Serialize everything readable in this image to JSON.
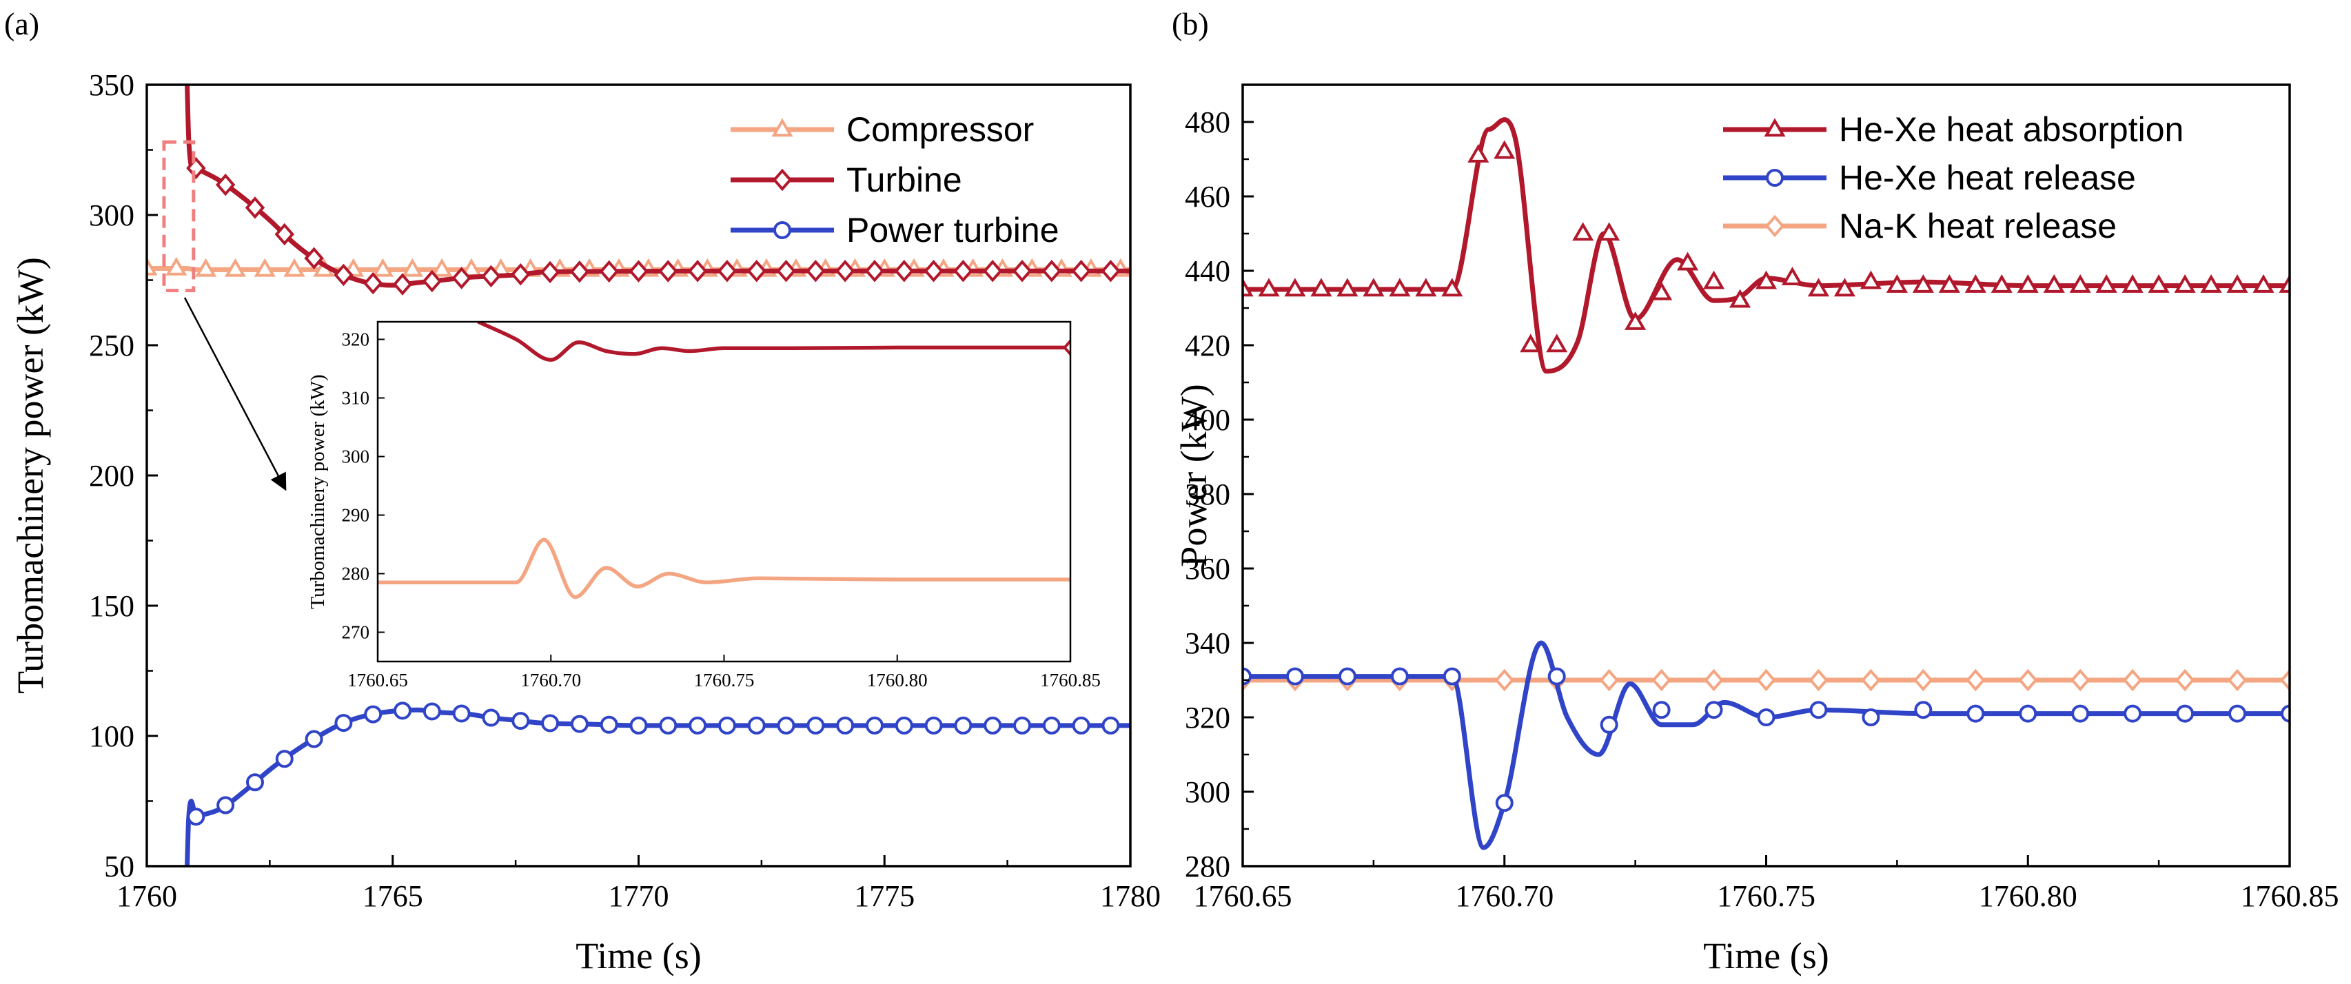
{
  "chart_data": [
    {
      "panel_label": "(a)",
      "type": "line",
      "xlabel": "Time (s)",
      "ylabel": "Turbomachinery power (kW)",
      "xlim": [
        1760,
        1780
      ],
      "ylim": [
        50,
        350
      ],
      "xticks": [
        "1760",
        "1765",
        "1770",
        "1775",
        "1780"
      ],
      "yticks": [
        "50",
        "100",
        "150",
        "200",
        "250",
        "300",
        "350"
      ],
      "legend_position": "top-right",
      "series": [
        {
          "name": "Compressor",
          "color": "#F4A582",
          "marker": "triangle",
          "x": [
            1760,
            1760.5,
            1760.8,
            1761,
            1761.5,
            1762,
            1763,
            1764,
            1765,
            1766,
            1767,
            1768,
            1769,
            1770,
            1772,
            1774,
            1776,
            1778,
            1780
          ],
          "y": [
            279.5,
            279.5,
            279.5,
            279.0,
            279.0,
            279.0,
            279.0,
            279.0,
            279.0,
            279.0,
            279.0,
            279.0,
            279.0,
            279.0,
            279.0,
            279.0,
            279.0,
            279.0,
            279.0
          ]
        },
        {
          "name": "Turbine",
          "color": "#B2182B",
          "marker": "diamond",
          "x": [
            1760.82,
            1760.85,
            1760.9,
            1761,
            1761.5,
            1762,
            1762.5,
            1763,
            1763.5,
            1764,
            1764.5,
            1765,
            1765.5,
            1766,
            1766.5,
            1767,
            1767.5,
            1768,
            1769,
            1770,
            1772,
            1774,
            1776,
            1778,
            1780
          ],
          "y": [
            350,
            330,
            319,
            318.0,
            313.0,
            306.0,
            298.0,
            289.0,
            282.0,
            277.0,
            274.0,
            273.0,
            274.0,
            275.0,
            276.0,
            276.5,
            277.0,
            278.0,
            278.3,
            278.4,
            278.5,
            278.5,
            278.5,
            278.5,
            278.5
          ]
        },
        {
          "name": "Power turbine",
          "color": "#3044C8",
          "marker": "circle",
          "x": [
            1760.82,
            1760.85,
            1761,
            1761.5,
            1762,
            1762.5,
            1763,
            1763.5,
            1764,
            1764.5,
            1765,
            1765.5,
            1766,
            1766.5,
            1767,
            1767.5,
            1768,
            1769,
            1770,
            1772,
            1774,
            1776,
            1778,
            1780
          ],
          "y": [
            50,
            68,
            69.0,
            72.0,
            79.0,
            87.0,
            94.0,
            100.0,
            105.0,
            108.0,
            109.5,
            110.0,
            109.0,
            108.5,
            107.0,
            106.0,
            105.0,
            104.5,
            104.0,
            104.0,
            104.0,
            104.0,
            104.0,
            104.0
          ]
        }
      ],
      "inset": {
        "type": "line",
        "ylabel": "Turbomachinery power (kW)",
        "xlim": [
          1760.65,
          1760.85
        ],
        "ylim": [
          265,
          323
        ],
        "xticks": [
          "1760.65",
          "1760.70",
          "1760.75",
          "1760.80",
          "1760.85"
        ],
        "yticks": [
          "270",
          "280",
          "290",
          "300",
          "310",
          "320"
        ],
        "series": [
          {
            "name": "Turbine",
            "color": "#B2182B",
            "x": [
              1760.679,
              1760.69,
              1760.7,
              1760.708,
              1760.716,
              1760.724,
              1760.732,
              1760.74,
              1760.75,
              1760.77,
              1760.8,
              1760.85
            ],
            "y": [
              323,
              320,
              316.5,
              319.5,
              318.0,
              317.5,
              318.5,
              318.0,
              318.5,
              318.5,
              318.6,
              318.6
            ],
            "end_marker": "diamond"
          },
          {
            "name": "Compressor",
            "color": "#F4A582",
            "x": [
              1760.65,
              1760.69,
              1760.698,
              1760.707,
              1760.716,
              1760.725,
              1760.734,
              1760.745,
              1760.76,
              1760.8,
              1760.85
            ],
            "y": [
              278.5,
              278.5,
              285.8,
              276.0,
              281.0,
              277.8,
              280.0,
              278.5,
              279.2,
              279.0,
              279.0
            ]
          }
        ]
      },
      "zoom_box_note": "dashed box near t=1760.8 s with arrow to inset"
    },
    {
      "panel_label": "(b)",
      "type": "line",
      "xlabel": "Time (s)",
      "ylabel": "Power (kW)",
      "xlim": [
        1760.65,
        1760.85
      ],
      "ylim": [
        280,
        490
      ],
      "xticks": [
        "1760.65",
        "1760.70",
        "1760.75",
        "1760.80",
        "1760.85"
      ],
      "yticks": [
        "280",
        "300",
        "320",
        "340",
        "360",
        "380",
        "400",
        "420",
        "440",
        "460",
        "480"
      ],
      "legend_position": "top-right",
      "series": [
        {
          "name": "He-Xe heat absorption",
          "color": "#B2182B",
          "marker": "triangle",
          "x": [
            1760.65,
            1760.69,
            1760.697,
            1760.702,
            1760.708,
            1760.714,
            1760.719,
            1760.725,
            1760.733,
            1760.74,
            1760.745,
            1760.75,
            1760.76,
            1760.78,
            1760.8,
            1760.85
          ],
          "y": [
            435,
            435,
            478,
            476,
            413,
            421,
            450,
            427,
            443,
            432,
            433,
            438,
            436,
            437,
            436,
            436
          ],
          "marker_x": [
            1760.65,
            1760.655,
            1760.66,
            1760.665,
            1760.67,
            1760.675,
            1760.68,
            1760.685,
            1760.69,
            1760.695,
            1760.7,
            1760.705,
            1760.71,
            1760.715,
            1760.72,
            1760.725,
            1760.73,
            1760.735,
            1760.74,
            1760.745,
            1760.75,
            1760.755,
            1760.76,
            1760.765,
            1760.77,
            1760.775,
            1760.78,
            1760.785,
            1760.79,
            1760.795,
            1760.8,
            1760.805,
            1760.81,
            1760.815,
            1760.82,
            1760.825,
            1760.83,
            1760.835,
            1760.84,
            1760.845,
            1760.85
          ],
          "marker_y": [
            435,
            435,
            435,
            435,
            435,
            435,
            435,
            435,
            435,
            471,
            472,
            420,
            420,
            450,
            450,
            426,
            434,
            442,
            437,
            432,
            437,
            438,
            435,
            435,
            437,
            436,
            436,
            436,
            436,
            436,
            436,
            436,
            436,
            436,
            436,
            436,
            436,
            436,
            436,
            436,
            436
          ]
        },
        {
          "name": "He-Xe heat release",
          "color": "#3044C8",
          "marker": "circle",
          "x": [
            1760.65,
            1760.69,
            1760.696,
            1760.7,
            1760.707,
            1760.712,
            1760.718,
            1760.724,
            1760.73,
            1760.736,
            1760.742,
            1760.75,
            1760.76,
            1760.78,
            1760.8,
            1760.85
          ],
          "y": [
            331,
            331,
            285,
            297,
            340,
            320,
            310,
            329,
            318,
            318,
            324,
            320,
            322,
            321,
            321,
            321
          ],
          "marker_x": [
            1760.65,
            1760.66,
            1760.67,
            1760.68,
            1760.69,
            1760.7,
            1760.71,
            1760.72,
            1760.73,
            1760.74,
            1760.75,
            1760.76,
            1760.77,
            1760.78,
            1760.79,
            1760.8,
            1760.81,
            1760.82,
            1760.83,
            1760.84,
            1760.85
          ],
          "marker_y": [
            331,
            331,
            331,
            331,
            331,
            297,
            331,
            318,
            322,
            322,
            320,
            322,
            320,
            322,
            321,
            321,
            321,
            321,
            321,
            321,
            321
          ]
        },
        {
          "name": "Na-K heat release",
          "color": "#F4A582",
          "marker": "diamond",
          "x": [
            1760.65,
            1760.85
          ],
          "y": [
            330,
            330
          ],
          "marker_x": [
            1760.65,
            1760.66,
            1760.67,
            1760.68,
            1760.69,
            1760.7,
            1760.71,
            1760.72,
            1760.73,
            1760.74,
            1760.75,
            1760.76,
            1760.77,
            1760.78,
            1760.79,
            1760.8,
            1760.81,
            1760.82,
            1760.83,
            1760.84,
            1760.85
          ],
          "marker_y": [
            330,
            330,
            330,
            330,
            330,
            330,
            330,
            330,
            330,
            330,
            330,
            330,
            330,
            330,
            330,
            330,
            330,
            330,
            330,
            330,
            330
          ]
        }
      ]
    }
  ]
}
